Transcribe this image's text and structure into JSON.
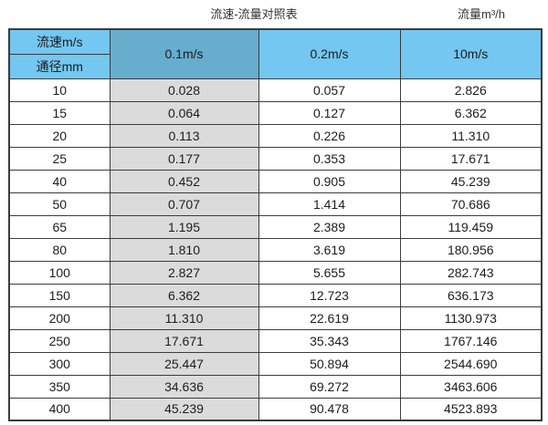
{
  "page": {
    "title_left": "流速-流量对照表",
    "title_right": "流量m³/h"
  },
  "colors": {
    "header_blue": "#73c7f0",
    "header_blue_highlight": "#66adce",
    "highlight_column_gray": "#dbdbdb",
    "border": "#3c3c3c"
  },
  "table": {
    "corner": {
      "top": "流速m/s",
      "bottom": "通径mm"
    },
    "velocity_headers": [
      "0.1m/s",
      "0.2m/s",
      "10m/s"
    ],
    "rows": [
      {
        "dn": "10",
        "v01": "0.028",
        "v02": "0.057",
        "v10": "2.826"
      },
      {
        "dn": "15",
        "v01": "0.064",
        "v02": "0.127",
        "v10": "6.362"
      },
      {
        "dn": "20",
        "v01": "0.113",
        "v02": "0.226",
        "v10": "11.310"
      },
      {
        "dn": "25",
        "v01": "0.177",
        "v02": "0.353",
        "v10": "17.671"
      },
      {
        "dn": "40",
        "v01": "0.452",
        "v02": "0.905",
        "v10": "45.239"
      },
      {
        "dn": "50",
        "v01": "0.707",
        "v02": "1.414",
        "v10": "70.686"
      },
      {
        "dn": "65",
        "v01": "1.195",
        "v02": "2.389",
        "v10": "119.459"
      },
      {
        "dn": "80",
        "v01": "1.810",
        "v02": "3.619",
        "v10": "180.956"
      },
      {
        "dn": "100",
        "v01": "2.827",
        "v02": "5.655",
        "v10": "282.743"
      },
      {
        "dn": "150",
        "v01": "6.362",
        "v02": "12.723",
        "v10": "636.173"
      },
      {
        "dn": "200",
        "v01": "11.310",
        "v02": "22.619",
        "v10": "1130.973"
      },
      {
        "dn": "250",
        "v01": "17.671",
        "v02": "35.343",
        "v10": "1767.146"
      },
      {
        "dn": "300",
        "v01": "25.447",
        "v02": "50.894",
        "v10": "2544.690"
      },
      {
        "dn": "350",
        "v01": "34.636",
        "v02": "69.272",
        "v10": "3463.606"
      },
      {
        "dn": "400",
        "v01": "45.239",
        "v02": "90.478",
        "v10": "4523.893"
      }
    ]
  },
  "chart_data": {
    "type": "table",
    "title": "流速-流量对照表",
    "unit_label": "流量m³/h",
    "corner_labels": [
      "流速m/s",
      "通径mm"
    ],
    "columns": [
      "通径mm",
      "0.1m/s",
      "0.2m/s",
      "10m/s"
    ],
    "rows": [
      [
        10,
        0.028,
        0.057,
        2.826
      ],
      [
        15,
        0.064,
        0.127,
        6.362
      ],
      [
        20,
        0.113,
        0.226,
        11.31
      ],
      [
        25,
        0.177,
        0.353,
        17.671
      ],
      [
        40,
        0.452,
        0.905,
        45.239
      ],
      [
        50,
        0.707,
        1.414,
        70.686
      ],
      [
        65,
        1.195,
        2.389,
        119.459
      ],
      [
        80,
        1.81,
        3.619,
        180.956
      ],
      [
        100,
        2.827,
        5.655,
        282.743
      ],
      [
        150,
        6.362,
        12.723,
        636.173
      ],
      [
        200,
        11.31,
        22.619,
        1130.973
      ],
      [
        250,
        17.671,
        35.343,
        1767.146
      ],
      [
        300,
        25.447,
        50.894,
        2544.69
      ],
      [
        350,
        34.636,
        69.272,
        3463.606
      ],
      [
        400,
        45.239,
        90.478,
        4523.893
      ]
    ],
    "layout": {
      "highlighted_column": "0.1m/s",
      "header_fill": "#73c7f0",
      "highlighted_header_fill": "#66adce",
      "highlighted_body_fill": "#dbdbdb"
    }
  }
}
